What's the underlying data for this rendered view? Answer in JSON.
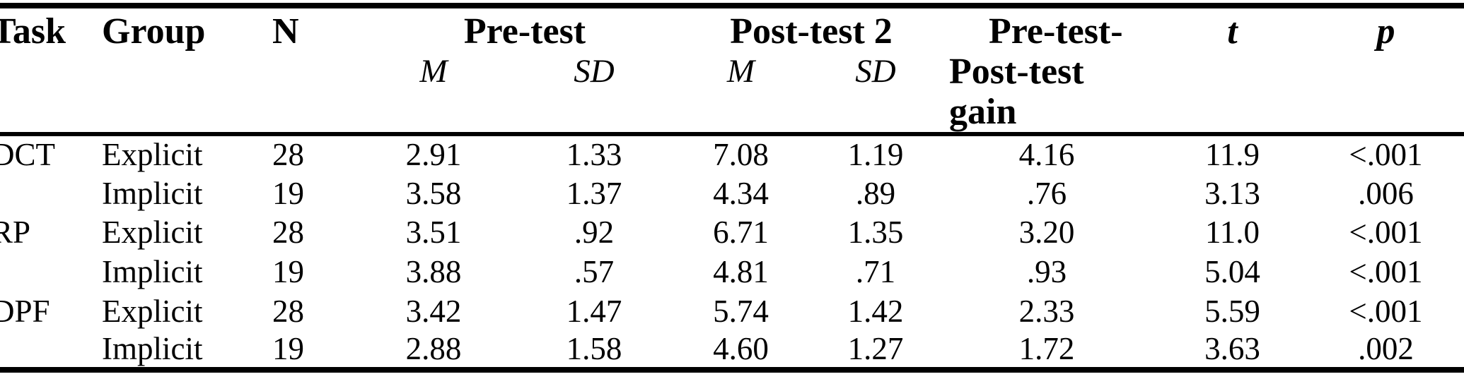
{
  "table": {
    "columns": {
      "task": "Task",
      "group": "Group",
      "n": "N",
      "pretest": "Pre-test",
      "posttest2": "Post-test 2",
      "m": "M",
      "sd": "SD",
      "gain_line1": "Pre-test-",
      "gain_line2": "Post-test",
      "gain_line3": "gain",
      "t": "t",
      "p": "p"
    },
    "rows": [
      {
        "task": "DCT",
        "group": "Explicit",
        "n": "28",
        "pre_m": "2.91",
        "pre_sd": "1.33",
        "post_m": "7.08",
        "post_sd": "1.19",
        "gain": "4.16",
        "t": "11.9",
        "p": "<.001"
      },
      {
        "task": "",
        "group": "Implicit",
        "n": "19",
        "pre_m": "3.58",
        "pre_sd": "1.37",
        "post_m": "4.34",
        "post_sd": ".89",
        "gain": ".76",
        "t": "3.13",
        "p": ".006"
      },
      {
        "task": "RP",
        "group": "Explicit",
        "n": "28",
        "pre_m": "3.51",
        "pre_sd": ".92",
        "post_m": "6.71",
        "post_sd": "1.35",
        "gain": "3.20",
        "t": "11.0",
        "p": "<.001"
      },
      {
        "task": "",
        "group": "Implicit",
        "n": "19",
        "pre_m": "3.88",
        "pre_sd": ".57",
        "post_m": "4.81",
        "post_sd": ".71",
        "gain": ".93",
        "t": "5.04",
        "p": "<.001"
      },
      {
        "task": "DPF",
        "group": "Explicit",
        "n": "28",
        "pre_m": "3.42",
        "pre_sd": "1.47",
        "post_m": "5.74",
        "post_sd": "1.42",
        "gain": "2.33",
        "t": "5.59",
        "p": "<.001"
      },
      {
        "task": "",
        "group": "Implicit",
        "n": "19",
        "pre_m": "2.88",
        "pre_sd": "1.58",
        "post_m": "4.60",
        "post_sd": "1.27",
        "gain": "1.72",
        "t": "3.63",
        "p": ".002"
      }
    ],
    "colors": {
      "text": "#000000",
      "rule": "#000000",
      "background": "#ffffff"
    }
  }
}
